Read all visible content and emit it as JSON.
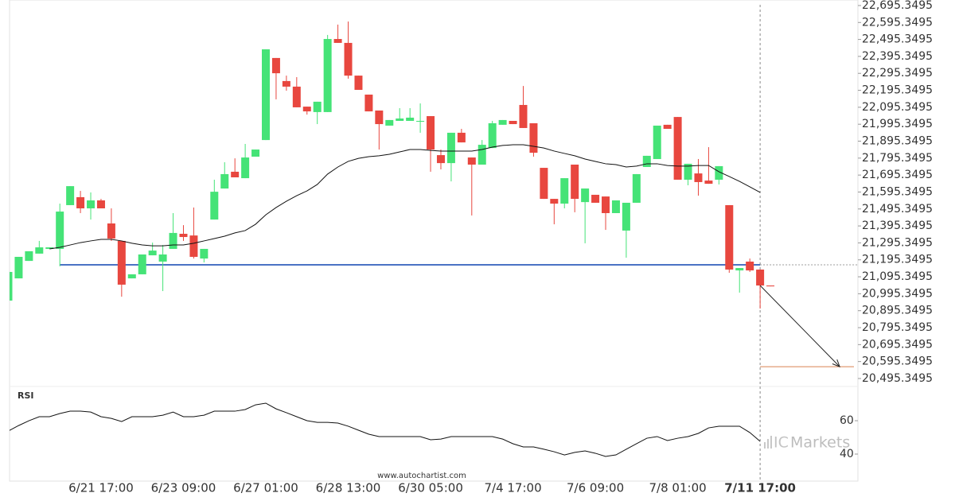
{
  "chart_data": [
    {
      "type": "candlestick",
      "categories": [
        null,
        null,
        null,
        null,
        null,
        null,
        null,
        null,
        null,
        "6/21 17:00",
        null,
        null,
        null,
        null,
        null,
        null,
        null,
        "6/23 09:00",
        null,
        null,
        null,
        null,
        null,
        null,
        null,
        "6/27 01:00",
        null,
        null,
        null,
        null,
        null,
        null,
        null,
        "6/28 13:00",
        null,
        null,
        null,
        null,
        null,
        null,
        null,
        "6/30 05:00",
        null,
        null,
        null,
        null,
        null,
        null,
        null,
        "7/4 17:00",
        null,
        null,
        null,
        null,
        null,
        null,
        null,
        "7/6 09:00",
        null,
        null,
        null,
        null,
        null,
        null,
        null,
        "7/8 01:00",
        null,
        null,
        null,
        null,
        null,
        null,
        null,
        "7/11 17:00",
        null
      ],
      "open": [
        20955,
        21086,
        21189,
        21232,
        21260,
        21260,
        21518,
        21565,
        21499,
        21546,
        21410,
        21307,
        21086,
        21110,
        21222,
        21185,
        21260,
        21349,
        21339,
        21203,
        21433,
        21616,
        21715,
        21677,
        21804,
        21902,
        22386,
        22250,
        22217,
        22099,
        22067,
        22067,
        22498,
        22475,
        22282,
        22170,
        22076,
        21987,
        22015,
        22015,
        22010,
        22043,
        21813,
        21766,
        21945,
        21799,
        21757,
        21855,
        21992,
        22015,
        22109,
        22001,
        21738,
        21555,
        21527,
        21757,
        21536,
        21579,
        21569,
        21471,
        21368,
        21532,
        21743,
        21790,
        21992,
        22038,
        21668,
        21705,
        21663,
        21668,
        21518,
        21133,
        21185,
        21138,
        21044
      ],
      "high": [
        21124,
        21213,
        21246,
        21307,
        21269,
        21527,
        21630,
        21602,
        21593,
        21555,
        21499,
        21307,
        21110,
        21227,
        21297,
        21283,
        21471,
        21400,
        21504,
        21260,
        21668,
        21771,
        21794,
        21879,
        21846,
        22437,
        22386,
        22282,
        22273,
        22099,
        22128,
        22522,
        22583,
        22601,
        22282,
        22170,
        22076,
        22020,
        22090,
        22090,
        22118,
        22043,
        21846,
        21945,
        21968,
        21799,
        21902,
        22015,
        22020,
        22015,
        22221,
        22001,
        21738,
        21555,
        21677,
        21757,
        21616,
        21579,
        21569,
        21546,
        21532,
        21701,
        21809,
        21987,
        21992,
        22038,
        21762,
        21790,
        21860,
        21748,
        21518,
        21147,
        21203,
        21138,
        21044
      ],
      "low": [
        20955,
        21086,
        21189,
        21232,
        21260,
        21157,
        21518,
        21471,
        21433,
        21499,
        21307,
        20978,
        21086,
        21110,
        21222,
        21011,
        21260,
        21307,
        21203,
        21180,
        21433,
        21616,
        21682,
        21677,
        21804,
        21902,
        22142,
        22193,
        22095,
        22052,
        21996,
        22067,
        22475,
        22264,
        22198,
        22071,
        21846,
        21987,
        22015,
        22015,
        21945,
        21715,
        21729,
        21658,
        21888,
        21457,
        21757,
        21855,
        21992,
        21996,
        21973,
        21804,
        21555,
        21405,
        21499,
        21476,
        21293,
        21532,
        21372,
        21471,
        21208,
        21532,
        21743,
        21790,
        21968,
        21668,
        21635,
        21574,
        21644,
        21640,
        21119,
        21002,
        21124,
        20908,
        21039
      ],
      "close": [
        21124,
        21213,
        21246,
        21269,
        21269,
        21480,
        21630,
        21499,
        21546,
        21499,
        21321,
        21049,
        21110,
        21227,
        21250,
        21227,
        21354,
        21330,
        21213,
        21260,
        21597,
        21701,
        21682,
        21799,
        21846,
        22437,
        22296,
        22217,
        22095,
        22071,
        22128,
        22498,
        22475,
        22282,
        22198,
        22071,
        21996,
        22020,
        22029,
        22034,
        22015,
        21846,
        21766,
        21945,
        21888,
        21757,
        21874,
        22001,
        22020,
        21996,
        21973,
        21827,
        21555,
        21527,
        21677,
        21555,
        21616,
        21532,
        21471,
        21546,
        21532,
        21701,
        21809,
        21987,
        21968,
        21668,
        21762,
        21654,
        21644,
        21748,
        21138,
        21147,
        21133,
        21044,
        21039
      ],
      "moving_average": [
        null,
        null,
        null,
        null,
        21260,
        21269,
        21283,
        21297,
        21307,
        21316,
        21316,
        21307,
        21293,
        21283,
        21278,
        21278,
        21283,
        21283,
        21293,
        21307,
        21321,
        21335,
        21354,
        21368,
        21405,
        21461,
        21504,
        21541,
        21574,
        21602,
        21640,
        21701,
        21743,
        21776,
        21794,
        21804,
        21809,
        21818,
        21832,
        21846,
        21846,
        21841,
        21837,
        21837,
        21837,
        21837,
        21846,
        21860,
        21870,
        21874,
        21874,
        21865,
        21855,
        21837,
        21823,
        21809,
        21790,
        21776,
        21762,
        21757,
        21743,
        21748,
        21762,
        21762,
        21752,
        21748,
        21748,
        21752,
        21752,
        21715,
        21687,
        21658,
        21626,
        21593,
        null
      ],
      "up_color": "#45e377",
      "down_color": "#e8473f",
      "ma_color": "#111111",
      "support_level": 21166,
      "support_color": "#4a72c4",
      "target_level": 20565,
      "target_color": "#d9824f",
      "ylim": [
        20453,
        22728
      ],
      "yticks": [
        {
          "value": 20495.3495,
          "label": "20,495.3495"
        },
        {
          "value": 20595.3495,
          "label": "20,595.3495"
        },
        {
          "value": 20695.3495,
          "label": "20,695.3495"
        },
        {
          "value": 20795.3495,
          "label": "20,795.3495"
        },
        {
          "value": 20895.3495,
          "label": "20,895.3495"
        },
        {
          "value": 20995.3495,
          "label": "20,995.3495"
        },
        {
          "value": 21095.3495,
          "label": "21,095.3495"
        },
        {
          "value": 21195.3495,
          "label": "21,195.3495"
        },
        {
          "value": 21295.3495,
          "label": "21,295.3495"
        },
        {
          "value": 21395.3495,
          "label": "21,395.3495"
        },
        {
          "value": 21495.3495,
          "label": "21,495.3495"
        },
        {
          "value": 21595.3495,
          "label": "21,595.3495"
        },
        {
          "value": 21695.3495,
          "label": "21,695.3495"
        },
        {
          "value": 21795.3495,
          "label": "21,795.3495"
        },
        {
          "value": 21895.3495,
          "label": "21,895.3495"
        },
        {
          "value": 21995.3495,
          "label": "21,995.3495"
        },
        {
          "value": 22095.3495,
          "label": "22,095.3495"
        },
        {
          "value": 22195.3495,
          "label": "22,195.3495"
        },
        {
          "value": 22295.3495,
          "label": "22,295.3495"
        },
        {
          "value": 22395.3495,
          "label": "22,395.3495"
        },
        {
          "value": 22495.3495,
          "label": "22,495.3495"
        },
        {
          "value": 22595.3495,
          "label": "22,595.3495"
        },
        {
          "value": 22695.3495,
          "label": "22,695.3495"
        }
      ]
    },
    {
      "type": "line",
      "title": "RSI",
      "color": "#111111",
      "values": [
        53.8,
        57.1,
        60,
        62.4,
        62.4,
        64.3,
        65.7,
        65.7,
        65.2,
        62.4,
        61.4,
        59.5,
        62.4,
        62.4,
        62.4,
        63.3,
        65.2,
        62.4,
        62.4,
        63.3,
        65.7,
        65.7,
        65.7,
        66.7,
        69.5,
        70.5,
        67.1,
        64.8,
        62.4,
        60,
        59,
        59,
        58.6,
        56.7,
        54.3,
        51.9,
        50.5,
        50.5,
        50.5,
        50.5,
        50.5,
        48.6,
        49,
        50.5,
        50.5,
        50.5,
        50.5,
        50.5,
        49,
        46.2,
        44.3,
        44.3,
        42.9,
        41.4,
        39.5,
        41,
        41.9,
        40.5,
        38.6,
        39.5,
        42.9,
        46.2,
        49.5,
        50.5,
        48.1,
        49.5,
        50.5,
        52.4,
        55.7,
        56.7,
        56.7,
        56.7,
        52.9,
        47.6,
        null
      ],
      "ylim": [
        23.8,
        80.5
      ],
      "yticks": [
        40,
        60
      ]
    }
  ],
  "watermark": "www.autochartist.com",
  "brand": {
    "prefix": "IC",
    "name": "Markets"
  }
}
